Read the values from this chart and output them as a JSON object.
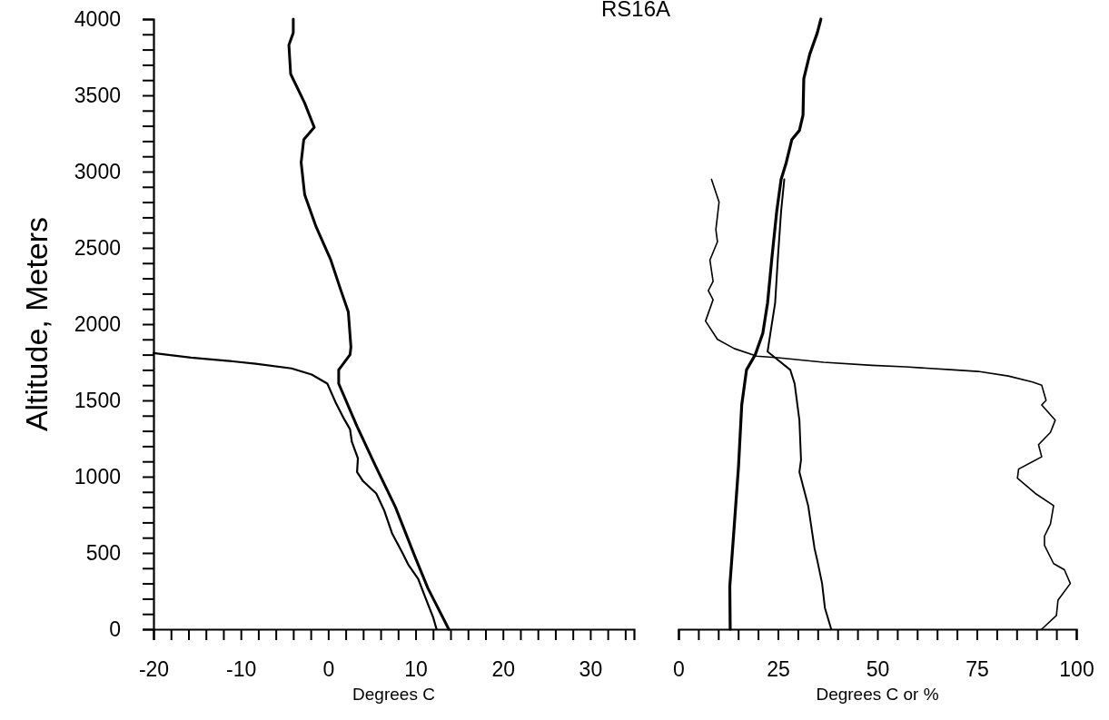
{
  "chart_data": [
    {
      "type": "line",
      "title": "RS16A",
      "xlabel": "Degrees C",
      "ylabel": "Altitude, Meters",
      "xlim": [
        -20,
        35
      ],
      "ylim": [
        0,
        4000
      ],
      "xticks": [
        -20,
        {
          "value": -18,
          "label": null
        },
        {
          "value": -16,
          "label": null
        },
        {
          "value": -14,
          "label": null
        },
        {
          "value": -12,
          "label": null
        },
        -10,
        {
          "value": -8,
          "label": null
        },
        {
          "value": -6,
          "label": null
        },
        {
          "value": -4,
          "label": null
        },
        {
          "value": -2,
          "label": null
        },
        0,
        {
          "value": 2,
          "label": null
        },
        {
          "value": 4,
          "label": null
        },
        {
          "value": 6,
          "label": null
        },
        {
          "value": 8,
          "label": null
        },
        10,
        {
          "value": 12,
          "label": null
        },
        {
          "value": 14,
          "label": null
        },
        {
          "value": 16,
          "label": null
        },
        {
          "value": 18,
          "label": null
        },
        20,
        {
          "value": 22,
          "label": null
        },
        {
          "value": 24,
          "label": null
        },
        {
          "value": 26,
          "label": null
        },
        {
          "value": 28,
          "label": null
        },
        30,
        {
          "value": 32,
          "label": null
        },
        {
          "value": 34,
          "label": null
        }
      ],
      "yticks": [
        0,
        {
          "value": 100,
          "label": null
        },
        {
          "value": 200,
          "label": null
        },
        {
          "value": 300,
          "label": null
        },
        {
          "value": 400,
          "label": null
        },
        500,
        {
          "value": 600,
          "label": null
        },
        {
          "value": 700,
          "label": null
        },
        {
          "value": 800,
          "label": null
        },
        {
          "value": 900,
          "label": null
        },
        1000,
        {
          "value": 1100,
          "label": null
        },
        {
          "value": 1200,
          "label": null
        },
        {
          "value": 1300,
          "label": null
        },
        {
          "value": 1400,
          "label": null
        },
        1500,
        {
          "value": 1600,
          "label": null
        },
        {
          "value": 1700,
          "label": null
        },
        {
          "value": 1800,
          "label": null
        },
        {
          "value": 1900,
          "label": null
        },
        2000,
        {
          "value": 2100,
          "label": null
        },
        {
          "value": 2200,
          "label": null
        },
        {
          "value": 2300,
          "label": null
        },
        {
          "value": 2400,
          "label": null
        },
        2500,
        {
          "value": 2600,
          "label": null
        },
        {
          "value": 2700,
          "label": null
        },
        {
          "value": 2800,
          "label": null
        },
        {
          "value": 2900,
          "label": null
        },
        3000,
        {
          "value": 3100,
          "label": null
        },
        {
          "value": 3200,
          "label": null
        },
        {
          "value": 3300,
          "label": null
        },
        {
          "value": 3400,
          "label": null
        },
        3500,
        {
          "value": 3600,
          "label": null
        },
        {
          "value": 3700,
          "label": null
        },
        {
          "value": 3800,
          "label": null
        },
        {
          "value": 3900,
          "label": null
        },
        4000
      ],
      "line_style": "solid",
      "series": [
        {
          "color": "#000000",
          "x": [
            -4.0,
            -4.0,
            -4.5,
            -4.3,
            -2.7,
            -1.6,
            -2.8,
            -3.1,
            -2.7,
            -1.4,
            0.3,
            1.4,
            2.3,
            2.6,
            2.5,
            1.2,
            1.2,
            3.3,
            5.5,
            7.7,
            9.9,
            11.4,
            13.8
          ],
          "values": [
            4000,
            3910,
            3830,
            3640,
            3450,
            3290,
            3210,
            3060,
            2850,
            2640,
            2420,
            2230,
            2080,
            1850,
            1800,
            1700,
            1610,
            1330,
            1060,
            800,
            480,
            270,
            0
          ]
        },
        {
          "color": "#000000",
          "x": [
            -20,
            -15.7,
            -11.6,
            -8.3,
            -4.2,
            -1.9,
            -0.1,
            0.9,
            1.8,
            2.5,
            2.7,
            3.4,
            3.3,
            4.0,
            5.5,
            6.4,
            7.3,
            8.5,
            9.2,
            10.3,
            11.1,
            12.0,
            12.4
          ],
          "values": [
            1810,
            1780,
            1760,
            1740,
            1710,
            1670,
            1610,
            1480,
            1380,
            1310,
            1230,
            1120,
            1030,
            970,
            890,
            780,
            630,
            500,
            420,
            330,
            210,
            80,
            0
          ]
        }
      ]
    },
    {
      "type": "line",
      "xlabel": "Degrees C or %",
      "xlim": [
        0,
        100
      ],
      "ylim": [
        0,
        4000
      ],
      "tick_labels": "x",
      "xticks": [
        0,
        {
          "value": 5,
          "label": null
        },
        {
          "value": 10,
          "label": null
        },
        {
          "value": 15,
          "label": null
        },
        {
          "value": 20,
          "label": null
        },
        25,
        {
          "value": 30,
          "label": null
        },
        {
          "value": 35,
          "label": null
        },
        {
          "value": 40,
          "label": null
        },
        {
          "value": 45,
          "label": null
        },
        50,
        {
          "value": 55,
          "label": null
        },
        {
          "value": 60,
          "label": null
        },
        {
          "value": 65,
          "label": null
        },
        {
          "value": 70,
          "label": null
        },
        75,
        {
          "value": 80,
          "label": null
        },
        {
          "value": 85,
          "label": null
        },
        {
          "value": 90,
          "label": null
        },
        {
          "value": 95,
          "label": null
        },
        100
      ],
      "line_style": "solid",
      "series": [
        {
          "color": "#000000",
          "x": [
            35.8,
            34.9,
            33.0,
            31.5,
            31.3,
            30.4,
            28.5,
            27.0,
            25.8,
            24.7,
            23.5,
            22.4,
            21.2,
            19.3,
            17.1,
            15.9,
            15.1,
            14.0,
            12.9,
            13.0
          ],
          "values": [
            4000,
            3910,
            3770,
            3610,
            3370,
            3270,
            3210,
            3050,
            2950,
            2740,
            2440,
            2140,
            1940,
            1800,
            1700,
            1470,
            1070,
            670,
            280,
            0
          ]
        },
        {
          "color": "#000000",
          "x": [
            26.6,
            25.8,
            25.0,
            24.3,
            23.1,
            22.4,
            24.3,
            28.1,
            29.2,
            30.4,
            30.8,
            30.4,
            32.6,
            34.2,
            34.9,
            36.1,
            36.8,
            38.4
          ],
          "values": [
            2950,
            2740,
            2440,
            2140,
            1940,
            1820,
            1780,
            1700,
            1610,
            1370,
            1110,
            1030,
            810,
            530,
            450,
            300,
            140,
            0
          ]
        },
        {
          "color": "#000000",
          "x": [
            8.3,
            10.2,
            9.4,
            9.8,
            7.9,
            8.7,
            7.5,
            8.7,
            6.8,
            9.8,
            14.0,
            19.7,
            25.0,
            36.5,
            48.6,
            57.0,
            69.2,
            75.3,
            82.9,
            89.0,
            91.3,
            92.4,
            91.3,
            94.7,
            93.5,
            90.5,
            91.3,
            85.5,
            85.2,
            89.7,
            94.3,
            93.5,
            92.0,
            92.0,
            94.3,
            97.0,
            98.5,
            95.4,
            95.0,
            91.3
          ],
          "values": [
            2950,
            2800,
            2620,
            2540,
            2420,
            2280,
            2220,
            2160,
            2020,
            1900,
            1840,
            1790,
            1780,
            1750,
            1730,
            1720,
            1700,
            1690,
            1660,
            1620,
            1600,
            1500,
            1470,
            1370,
            1290,
            1210,
            1130,
            1050,
            990,
            890,
            810,
            690,
            610,
            550,
            430,
            390,
            300,
            190,
            90,
            0
          ]
        }
      ]
    }
  ]
}
